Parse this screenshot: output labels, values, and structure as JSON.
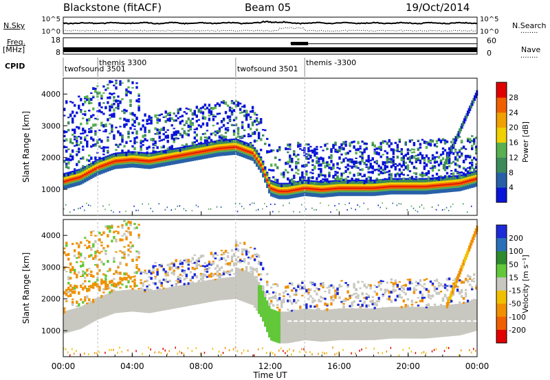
{
  "header": {
    "station": "Blackstone (fitACF)",
    "beam": "Beam 05",
    "date": "19/Oct/2014"
  },
  "strip_labels": {
    "nsky": "N.Sky",
    "nsearch": "N.Search",
    "freq": "Freq.",
    "freq_unit": "[MHz]",
    "nave": "Nave",
    "cpid": "CPID",
    "dots": "........"
  },
  "noise_panel": {
    "left_ticks": [
      "10^5",
      "10^0"
    ],
    "right_ticks": [
      "10^5",
      "10^0"
    ]
  },
  "freq_panel": {
    "left_ticks": [
      "18",
      "8"
    ],
    "right_ticks": [
      "60",
      "0"
    ],
    "freq_mhz": 10.5,
    "nave_segments": [
      {
        "start": "00:00",
        "end": "13:10",
        "value": 20
      },
      {
        "start": "13:10",
        "end": "14:10",
        "value": 40
      },
      {
        "start": "14:10",
        "end": "24:00",
        "value": 38
      }
    ]
  },
  "cpid_labels": [
    {
      "text": "twofsound 3501",
      "time": "00:00",
      "row": "lower"
    },
    {
      "text": "themis 3300",
      "time": "02:00",
      "row": "upper"
    },
    {
      "text": "twofsound 3501",
      "time": "10:00",
      "row": "lower"
    },
    {
      "text": "themis -3300",
      "time": "14:00",
      "row": "upper"
    }
  ],
  "power_panel": {
    "ylabel": "Slant Range [km]",
    "yticks": [
      "1000",
      "2000",
      "3000",
      "4000"
    ],
    "cbar_label": "Power [dB]",
    "cbar_ticks": [
      "4",
      "8",
      "12",
      "16",
      "20",
      "24",
      "28"
    ],
    "colors": [
      "#0a14d8",
      "#2860a8",
      "#3c8a5a",
      "#58b050",
      "#f0d000",
      "#f0a000",
      "#f06000",
      "#e00000"
    ]
  },
  "velocity_panel": {
    "ylabel": "Slant Range [km]",
    "yticks": [
      "1000",
      "2000",
      "3000",
      "4000"
    ],
    "cbar_label": "Velocity [m s⁻¹]",
    "cbar_ticks": [
      "200",
      "100",
      "50",
      "15",
      "-15",
      "-50",
      "-100",
      "-200"
    ],
    "colors": [
      "#1c2ad8",
      "#2a70b8",
      "#2e8a2e",
      "#62c83a",
      "#c8c8c0",
      "#f0c000",
      "#f09000",
      "#f06000",
      "#e00000"
    ]
  },
  "xaxis": {
    "label": "Time UT",
    "ticks": [
      "00:00",
      "04:00",
      "08:00",
      "12:00",
      "16:00",
      "20:00",
      "00:00"
    ]
  },
  "chart_data": {
    "type": "heatmap",
    "title": "Blackstone (fitACF) Beam 05 19/Oct/2014",
    "xlabel": "Time UT",
    "ylabel": "Slant Range [km]",
    "x_range_hours": [
      0,
      24
    ],
    "y_range_km": [
      180,
      4500
    ],
    "scatter_band": {
      "description": "Main ionospheric scatter band centre slant range",
      "x": [
        0,
        1,
        2,
        3,
        4,
        5,
        6,
        7,
        8,
        9,
        10,
        11,
        11.5,
        12,
        12.5,
        13,
        14,
        15,
        16,
        17,
        18,
        19,
        20,
        21,
        22,
        23,
        24
      ],
      "center_km": [
        1200,
        1350,
        1650,
        1850,
        1900,
        1850,
        1950,
        2050,
        2150,
        2250,
        2300,
        2100,
        1700,
        1000,
        900,
        900,
        1000,
        950,
        1000,
        1000,
        1000,
        1050,
        1050,
        1050,
        1100,
        1150,
        1300
      ]
    },
    "power_colorbar": {
      "label": "Power [dB]",
      "ticks": [
        4,
        8,
        12,
        16,
        20,
        24,
        28
      ]
    },
    "velocity_colorbar": {
      "label": "Velocity [m s-1]",
      "ticks": [
        200,
        100,
        50,
        15,
        -15,
        -50,
        -100,
        -200
      ]
    }
  }
}
